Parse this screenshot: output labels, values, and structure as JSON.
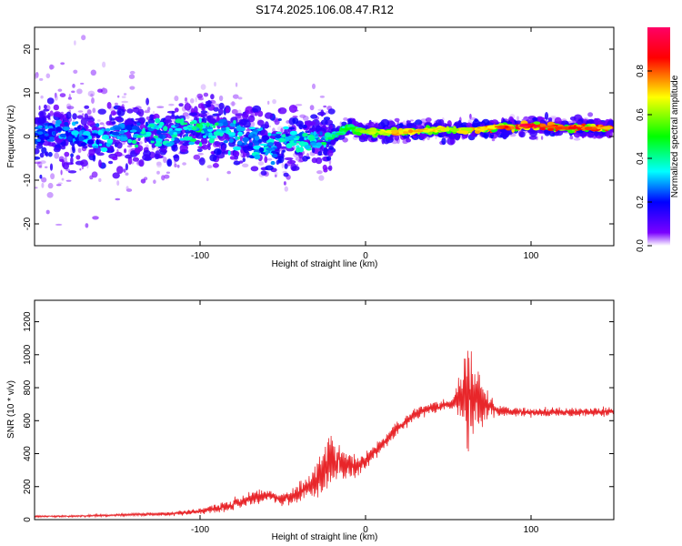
{
  "title": "S174.2025.106.08.47.R12",
  "chart_data": [
    {
      "type": "heatmap",
      "xlabel": "Height of straight line (km)",
      "ylabel": "Frequency (Hz)",
      "xlim": [
        -200,
        150
      ],
      "ylim": [
        -25,
        25
      ],
      "xticks": [
        -100,
        0,
        100
      ],
      "yticks": [
        -20,
        -10,
        0,
        10,
        20
      ],
      "colorbar": {
        "label": "Normalized spectral amplitude",
        "range": [
          0.0,
          1.0
        ],
        "ticks": [
          0.0,
          0.2,
          0.4,
          0.6,
          0.8
        ],
        "stops": [
          "#ffffff",
          "#7a00ff",
          "#0000ff",
          "#00ffff",
          "#00ff00",
          "#ffff00",
          "#ff0000",
          "#ff0066"
        ]
      },
      "ridge": {
        "x": [
          -200,
          -180,
          -160,
          -140,
          -120,
          -100,
          -80,
          -60,
          -40,
          -20,
          -10,
          0,
          20,
          40,
          60,
          80,
          100,
          120,
          150
        ],
        "frequency": [
          0.5,
          0.5,
          0.0,
          1.0,
          0.0,
          2.0,
          1.0,
          -2.0,
          -1.0,
          0.0,
          2.0,
          1.0,
          1.0,
          1.5,
          1.5,
          2.0,
          2.5,
          2.0,
          2.0
        ],
        "amplitude": [
          0.3,
          0.3,
          0.35,
          0.4,
          0.4,
          0.45,
          0.4,
          0.35,
          0.4,
          0.45,
          0.55,
          0.6,
          0.75,
          0.7,
          0.7,
          0.8,
          0.95,
          0.85,
          0.8
        ]
      }
    },
    {
      "type": "line",
      "xlabel": "Height of straight line (km)",
      "ylabel": "SNR (10 * v/v)",
      "xlim": [
        -200,
        150
      ],
      "ylim": [
        0,
        1330
      ],
      "xticks": [
        -100,
        0,
        100
      ],
      "yticks": [
        0,
        200,
        400,
        600,
        800,
        1000,
        1200
      ],
      "color": "#e8262a",
      "series": [
        {
          "x": [
            -200,
            -180,
            -160,
            -140,
            -120,
            -100,
            -80,
            -70,
            -60,
            -50,
            -40,
            -30,
            -25,
            -20,
            -15,
            -10,
            -5,
            0,
            10,
            20,
            30,
            40,
            50,
            55,
            60,
            62,
            65,
            70,
            75,
            80,
            100,
            120,
            140,
            150
          ],
          "values": [
            20,
            20,
            25,
            30,
            35,
            50,
            90,
            130,
            150,
            120,
            160,
            230,
            300,
            380,
            340,
            320,
            330,
            360,
            460,
            560,
            640,
            680,
            700,
            720,
            760,
            740,
            730,
            720,
            690,
            660,
            650,
            650,
            650,
            660
          ],
          "envelope_amplitude": [
            10,
            10,
            12,
            15,
            20,
            30,
            60,
            80,
            70,
            60,
            100,
            180,
            260,
            330,
            200,
            160,
            120,
            100,
            80,
            70,
            60,
            60,
            60,
            150,
            500,
            600,
            450,
            300,
            150,
            60,
            50,
            50,
            50,
            50
          ]
        }
      ]
    }
  ]
}
